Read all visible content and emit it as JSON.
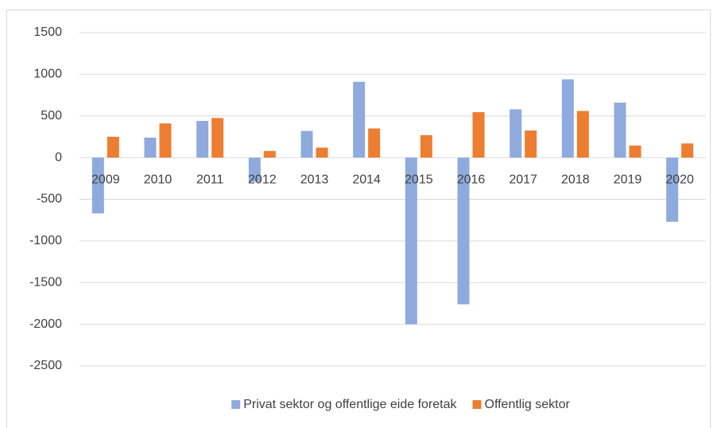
{
  "chart_data": {
    "type": "bar",
    "categories": [
      "2009",
      "2010",
      "2011",
      "2012",
      "2013",
      "2014",
      "2015",
      "2016",
      "2017",
      "2018",
      "2019",
      "2020"
    ],
    "series": [
      {
        "name": "Privat sektor og offentlige eide foretak",
        "color": "#8faadc",
        "values": [
          -670,
          240,
          440,
          -290,
          320,
          910,
          -2000,
          -1760,
          580,
          940,
          660,
          -770
        ]
      },
      {
        "name": "Offentlig sektor",
        "color": "#ed7d31",
        "values": [
          250,
          410,
          475,
          80,
          120,
          350,
          270,
          545,
          325,
          560,
          145,
          170
        ]
      }
    ],
    "ylim": [
      -2500,
      1500
    ],
    "yticks": [
      -2500,
      -2000,
      -1500,
      -1000,
      -500,
      0,
      500,
      1000,
      1500
    ],
    "grid": true,
    "legend": "bottom"
  }
}
